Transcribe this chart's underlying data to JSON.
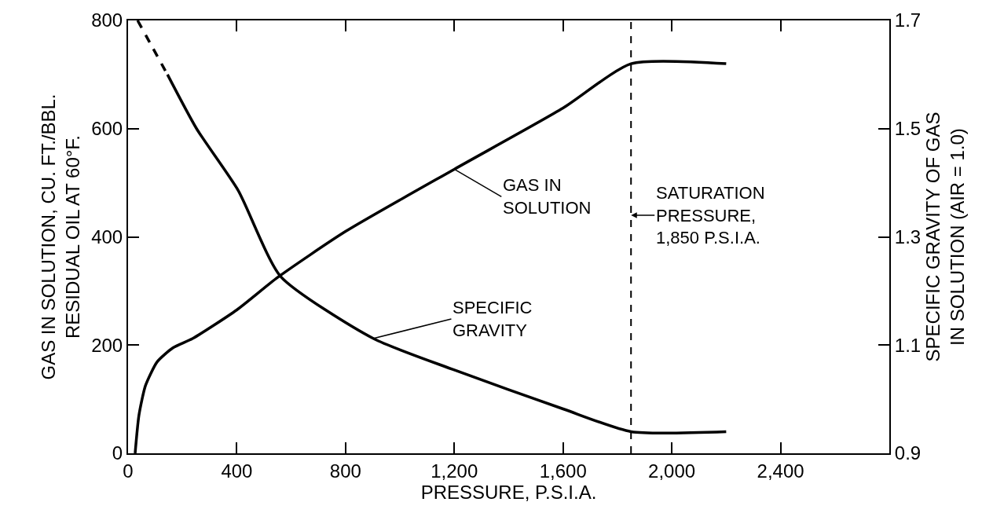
{
  "chart_data": {
    "type": "line",
    "xlabel": "PRESSURE, P.S.I.A.",
    "ylabel": "GAS IN SOLUTION, CU. FT./BBL.\nRESIDUAL OIL AT 60°F.",
    "y2label": "SPECIFIC GRAVITY OF GAS\nIN SOLUTION (AIR = 1.0)",
    "series": [
      {
        "color": "#000000",
        "x": [
          26,
          40,
          64,
          107,
          165,
          237,
          400,
          550,
          800,
          1200,
          1600,
          1850,
          2200
        ],
        "values": [
          0,
          70,
          125,
          169,
          195,
          212,
          265,
          325,
          410,
          525,
          638,
          720,
          720
        ]
      },
      {
        "color": "#000000",
        "axis": "y2",
        "line_style": "dashed",
        "x": [
          35,
          90,
          145
        ],
        "values": [
          1.7,
          1.65,
          1.6
        ]
      },
      {
        "color": "#000000",
        "axis": "y2",
        "x": [
          145,
          252,
          405,
          561,
          903,
          1200,
          1600,
          1850,
          2200
        ],
        "values": [
          1.6,
          1.5,
          1.386,
          1.227,
          1.112,
          1.054,
          0.982,
          0.94,
          0.94
        ]
      }
    ],
    "xlim": [
      0,
      2800
    ],
    "xticks": [
      0,
      400,
      800,
      {
        "value": 1200,
        "label": "1,200"
      },
      {
        "value": 1600,
        "label": "1,600"
      },
      {
        "value": 2000,
        "label": "2,000"
      },
      {
        "value": 2400,
        "label": "2,400"
      }
    ],
    "ylim": [
      0,
      800
    ],
    "yticks": [
      0,
      200,
      400,
      600,
      800
    ],
    "y2lim": [
      0.9,
      1.7
    ],
    "y2ticks": [
      0.9,
      1.1,
      1.3,
      1.5,
      1.7
    ],
    "ref_lines": [
      {
        "axis": "x",
        "value": 1850,
        "label": "SATURATION\nPRESSURE,\n1,850 P.S.I.A.",
        "line_style": "dashed",
        "color": "#000000"
      }
    ],
    "annotations": [
      {
        "text": "GAS IN\nSOLUTION",
        "x": 1200,
        "y": 525
      },
      {
        "text": "SPECIFIC\nGRAVITY",
        "x": 900,
        "y": 212
      }
    ]
  }
}
